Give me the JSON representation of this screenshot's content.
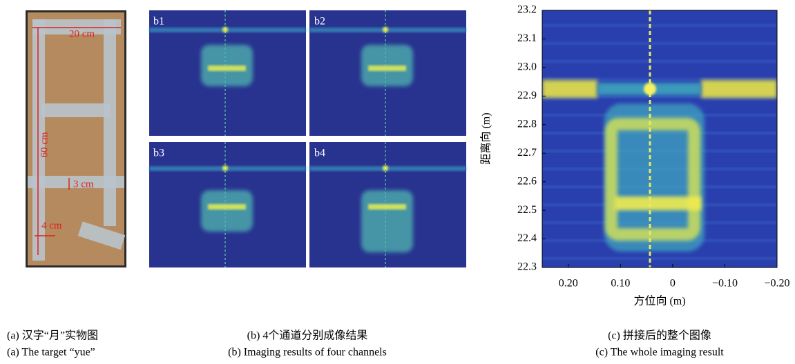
{
  "panel_a": {
    "labels": [
      "20 cm",
      "60 cm",
      "3 cm",
      "4 cm"
    ],
    "caption_zh": "(a) 汉字“月”实物图",
    "caption_en": "(a) The target “yue”"
  },
  "panel_b": {
    "labels": [
      "b1",
      "b2",
      "b3",
      "b4"
    ],
    "caption_zh": "(b) 4个通道分别成像结果",
    "caption_en": "(b) Imaging results of four channels"
  },
  "panel_c": {
    "xlabel": "方位向 (m)",
    "ylabel": "距离向 (m)",
    "xlim": [
      0.25,
      -0.2
    ],
    "ylim": [
      22.3,
      23.2
    ],
    "xticks": [
      {
        "value": 0.2,
        "label": "0.20"
      },
      {
        "value": 0.1,
        "label": "0.10"
      },
      0,
      {
        "value": -0.1,
        "label": "−0.10"
      },
      {
        "value": -0.2,
        "label": "−0.20"
      }
    ],
    "yticks": [
      22.3,
      22.4,
      22.5,
      22.6,
      22.7,
      22.8,
      22.9,
      {
        "value": 23,
        "label": "23.0"
      },
      23.1,
      23.2
    ],
    "caption_zh": "(c) 拼接后的整个图像",
    "caption_en": "(c) The whole imaging result"
  }
}
